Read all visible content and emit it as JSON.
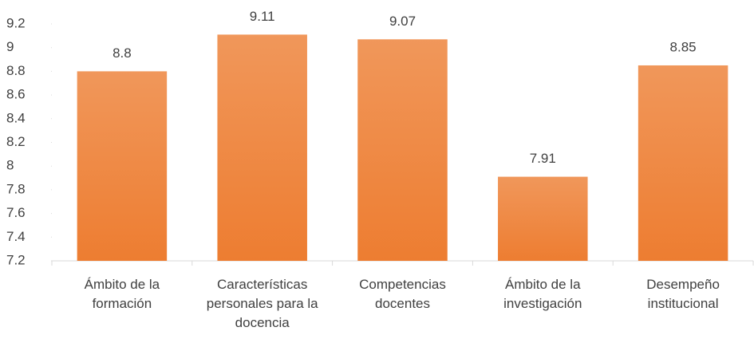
{
  "chart_data": {
    "type": "bar",
    "categories": [
      "Ámbito de la formación",
      "Características personales para la docencia",
      "Competencias docentes",
      "Ámbito de la investigación",
      "Desempeño institucional"
    ],
    "values": [
      8.8,
      9.11,
      9.07,
      7.91,
      8.85
    ],
    "color": "#ed7d31",
    "ylim": [
      7.2,
      9.2
    ],
    "yticks": [
      7.2,
      7.4,
      7.6,
      7.8,
      8,
      8.2,
      8.4,
      8.6,
      8.8,
      9,
      9.2
    ]
  }
}
